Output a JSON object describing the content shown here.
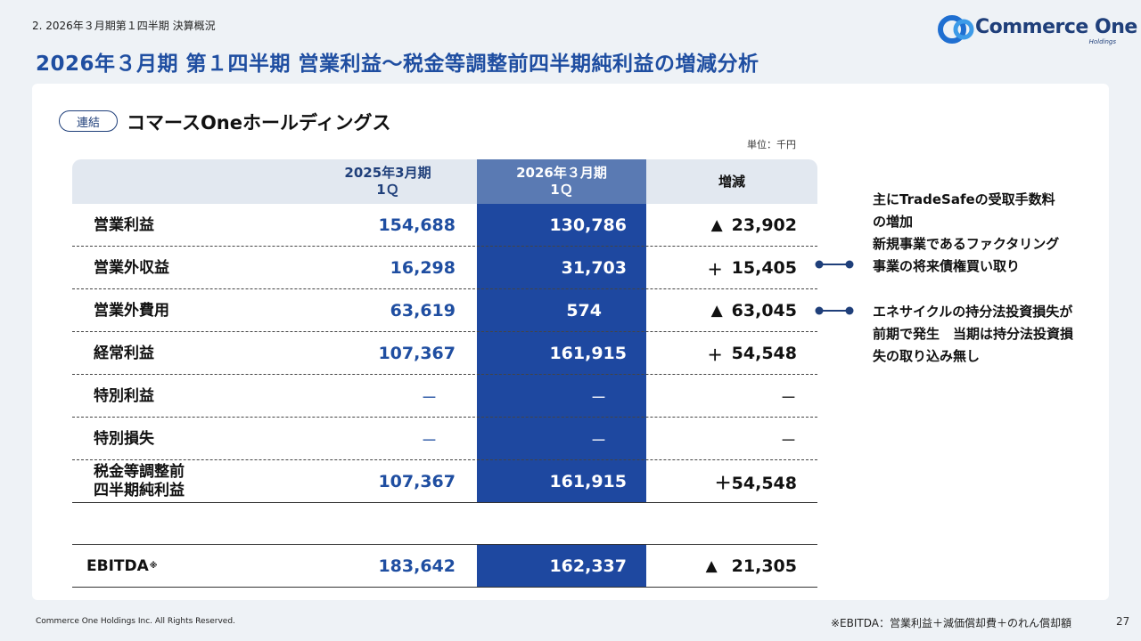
{
  "header": {
    "breadcrumb": "2. 2026年３月期第１四半期 決算概況",
    "title": "2026年３月期 第１四半期 営業利益～税金等調整前四半期純利益の増減分析",
    "logo_name": "Commerce One",
    "logo_sub": "Holdings"
  },
  "section": {
    "badge": "連結",
    "company": "コマースOneホールディングス",
    "unit": "単位：千円"
  },
  "table": {
    "columns": {
      "prev_line1": "2025年3月期",
      "prev_line2": "1Ｑ",
      "cur_line1": "2026年３月期",
      "cur_line2": "1Ｑ",
      "diff": "増減"
    },
    "rows": [
      {
        "label": "営業利益",
        "prev": "154,688",
        "cur": "130,786",
        "sign": "▲",
        "diff": "23,902"
      },
      {
        "label": "営業外収益",
        "prev": "16,298",
        "cur": "31,703",
        "sign": "＋",
        "diff": "15,405"
      },
      {
        "label": "営業外費用",
        "prev": "63,619",
        "cur": "574",
        "sign": "▲",
        "diff": "63,045"
      },
      {
        "label": "経常利益",
        "prev": "107,367",
        "cur": "161,915",
        "sign": "＋",
        "diff": "54,548"
      },
      {
        "label": "特別利益",
        "prev": "－",
        "cur": "－",
        "sign": "",
        "diff": "－"
      },
      {
        "label": "特別損失",
        "prev": "－",
        "cur": "－",
        "sign": "",
        "diff": "－"
      },
      {
        "label_line1": "税金等調整前",
        "label_line2": "四半期純利益",
        "prev": "107,367",
        "cur": "161,915",
        "sign": "",
        "diff": "＋54,548"
      }
    ],
    "ebitda": {
      "label": "EBITDA",
      "mark": "※",
      "prev": "183,642",
      "cur": "162,337",
      "sign": "▲",
      "diff": "21,305"
    }
  },
  "notes": {
    "income": [
      "主にTradeSafeの受取手数料",
      "の増加",
      "新規事業であるファクタリング",
      "事業の将来債権買い取り"
    ],
    "expense": [
      "エネサイクルの持分法投資損失が",
      "前期で発生　当期は持分法投資損",
      "失の取り込み無し"
    ]
  },
  "footer": {
    "copyright": "Commerce One Holdings Inc. All Rights Reserved.",
    "ebitda_note": "※EBITDA：営業利益＋減価償却費＋のれん償却額",
    "page": "27"
  },
  "colors": {
    "title_blue": "#1f4ea1",
    "navy": "#1f3f7a",
    "current_column": "#1e48a0",
    "current_header": "#5a7ab3"
  }
}
